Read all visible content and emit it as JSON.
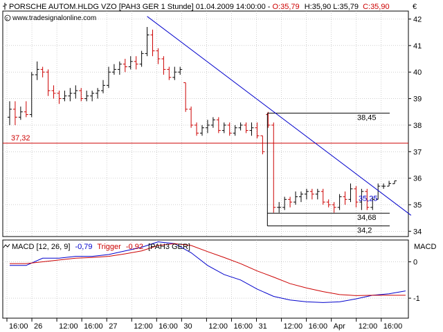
{
  "header": {
    "icon": "bar-chart-icon",
    "instrument": "PORSCHE AUTOM.HLDG VZO [PAH3 GER  1 Stunde] 01.04.2009 14:00:00 -",
    "ohlc_o": "O:35,79",
    "ohlc_hlc": "H:35,90 L:35,79",
    "ohlc_c": "C:35,90",
    "currency": "€",
    "copyright_icon": "copyright-icon",
    "source": "www.tradesignalonline.com"
  },
  "colors": {
    "up": "#000000",
    "down": "#cc0000",
    "trendline": "#0000cc",
    "hline": "#cc0000",
    "macd": "#0000cc",
    "trigger": "#cc0000",
    "grid": "#b0b0b0"
  },
  "chart_data": [
    {
      "type": "ohlc",
      "title": "PORSCHE AUTOM.HLDG VZO [PAH3 GER  1 Stunde]",
      "ylabel": "€",
      "ylim": [
        33.8,
        42.3
      ],
      "y_ticks": [
        34,
        35,
        36,
        37,
        38,
        39,
        40,
        41,
        42
      ],
      "y_tick_labels": [
        "34",
        "35",
        "36",
        "37",
        "38",
        "39",
        "40",
        "41",
        "42"
      ],
      "grid": true,
      "x_tick_labels": [
        "16:00",
        "26",
        "12:00",
        "16:00",
        "27",
        "12:00",
        "16:00",
        "30",
        "12:00",
        "16:00",
        "31",
        "12:00",
        "16:00",
        "Apr",
        "12:00",
        "16:00"
      ],
      "bars": [
        {
          "o": 38.3,
          "h": 38.9,
          "l": 38.0,
          "c": 38.6
        },
        {
          "o": 38.6,
          "h": 38.9,
          "l": 38.0,
          "c": 38.3
        },
        {
          "o": 38.3,
          "h": 38.7,
          "l": 38.2,
          "c": 38.5
        },
        {
          "o": 38.5,
          "h": 38.9,
          "l": 38.3,
          "c": 38.4
        },
        {
          "o": 38.4,
          "h": 40.0,
          "l": 38.3,
          "c": 39.9
        },
        {
          "o": 39.9,
          "h": 40.4,
          "l": 39.7,
          "c": 40.1
        },
        {
          "o": 40.1,
          "h": 40.2,
          "l": 39.8,
          "c": 40.0
        },
        {
          "o": 40.0,
          "h": 40.1,
          "l": 39.1,
          "c": 39.3
        },
        {
          "o": 39.3,
          "h": 39.5,
          "l": 39.0,
          "c": 39.2
        },
        {
          "o": 39.2,
          "h": 39.3,
          "l": 38.8,
          "c": 39.0
        },
        {
          "o": 39.0,
          "h": 39.3,
          "l": 38.9,
          "c": 39.1
        },
        {
          "o": 39.1,
          "h": 39.4,
          "l": 38.9,
          "c": 39.2
        },
        {
          "o": 39.2,
          "h": 39.5,
          "l": 39.0,
          "c": 39.3
        },
        {
          "o": 39.3,
          "h": 39.4,
          "l": 38.9,
          "c": 39.0
        },
        {
          "o": 39.0,
          "h": 39.3,
          "l": 38.9,
          "c": 39.1
        },
        {
          "o": 39.1,
          "h": 39.3,
          "l": 38.9,
          "c": 39.2
        },
        {
          "o": 39.2,
          "h": 39.4,
          "l": 39.0,
          "c": 39.3
        },
        {
          "o": 39.3,
          "h": 39.7,
          "l": 39.2,
          "c": 39.5
        },
        {
          "o": 39.5,
          "h": 40.2,
          "l": 39.4,
          "c": 40.0
        },
        {
          "o": 40.0,
          "h": 40.3,
          "l": 39.9,
          "c": 40.1
        },
        {
          "o": 40.1,
          "h": 40.4,
          "l": 39.9,
          "c": 40.3
        },
        {
          "o": 40.3,
          "h": 40.5,
          "l": 40.0,
          "c": 40.2
        },
        {
          "o": 40.2,
          "h": 40.6,
          "l": 40.1,
          "c": 40.4
        },
        {
          "o": 40.4,
          "h": 40.6,
          "l": 40.1,
          "c": 40.3
        },
        {
          "o": 40.3,
          "h": 40.8,
          "l": 40.2,
          "c": 40.7
        },
        {
          "o": 40.7,
          "h": 41.7,
          "l": 40.6,
          "c": 41.4
        },
        {
          "o": 41.4,
          "h": 41.6,
          "l": 40.6,
          "c": 40.8
        },
        {
          "o": 40.8,
          "h": 40.9,
          "l": 40.3,
          "c": 40.5
        },
        {
          "o": 40.5,
          "h": 40.6,
          "l": 39.9,
          "c": 40.1
        },
        {
          "o": 40.1,
          "h": 40.2,
          "l": 39.7,
          "c": 39.8
        },
        {
          "o": 39.8,
          "h": 40.2,
          "l": 39.7,
          "c": 40.0
        },
        {
          "o": 40.0,
          "h": 40.2,
          "l": 39.9,
          "c": 40.1
        },
        {
          "o": 39.6,
          "h": 39.6,
          "l": 38.5,
          "c": 38.6
        },
        {
          "o": 38.6,
          "h": 38.7,
          "l": 37.9,
          "c": 38.0
        },
        {
          "o": 38.0,
          "h": 38.1,
          "l": 37.6,
          "c": 37.7
        },
        {
          "o": 37.7,
          "h": 38.0,
          "l": 37.6,
          "c": 37.9
        },
        {
          "o": 37.9,
          "h": 38.2,
          "l": 37.7,
          "c": 38.0
        },
        {
          "o": 38.0,
          "h": 38.3,
          "l": 37.9,
          "c": 38.2
        },
        {
          "o": 38.2,
          "h": 38.3,
          "l": 37.7,
          "c": 37.8
        },
        {
          "o": 37.8,
          "h": 38.1,
          "l": 37.7,
          "c": 38.0
        },
        {
          "o": 38.0,
          "h": 38.1,
          "l": 37.6,
          "c": 37.7
        },
        {
          "o": 37.7,
          "h": 38.0,
          "l": 37.6,
          "c": 37.9
        },
        {
          "o": 37.9,
          "h": 38.1,
          "l": 37.8,
          "c": 38.0
        },
        {
          "o": 38.0,
          "h": 38.1,
          "l": 37.7,
          "c": 37.8
        },
        {
          "o": 37.8,
          "h": 38.1,
          "l": 37.6,
          "c": 37.9
        },
        {
          "o": 37.9,
          "h": 38.1,
          "l": 37.5,
          "c": 37.6
        },
        {
          "o": 37.6,
          "h": 37.6,
          "l": 36.9,
          "c": 37.0
        },
        {
          "o": 38.4,
          "h": 38.5,
          "l": 37.9,
          "c": 38.0
        },
        {
          "o": 38.0,
          "h": 38.1,
          "l": 34.7,
          "c": 34.9
        },
        {
          "o": 34.9,
          "h": 35.1,
          "l": 34.7,
          "c": 34.9
        },
        {
          "o": 34.9,
          "h": 35.3,
          "l": 34.8,
          "c": 35.2
        },
        {
          "o": 35.2,
          "h": 35.3,
          "l": 34.9,
          "c": 35.1
        },
        {
          "o": 35.1,
          "h": 35.5,
          "l": 35.0,
          "c": 35.3
        },
        {
          "o": 35.3,
          "h": 35.5,
          "l": 35.1,
          "c": 35.4
        },
        {
          "o": 35.4,
          "h": 35.6,
          "l": 35.2,
          "c": 35.5
        },
        {
          "o": 35.5,
          "h": 35.6,
          "l": 35.2,
          "c": 35.4
        },
        {
          "o": 35.4,
          "h": 35.6,
          "l": 35.2,
          "c": 35.5
        },
        {
          "o": 35.5,
          "h": 35.6,
          "l": 35.0,
          "c": 35.1
        },
        {
          "o": 35.1,
          "h": 35.2,
          "l": 34.9,
          "c": 35.0
        },
        {
          "o": 35.0,
          "h": 35.1,
          "l": 34.7,
          "c": 34.9
        },
        {
          "o": 34.9,
          "h": 35.4,
          "l": 34.8,
          "c": 35.3
        },
        {
          "o": 35.3,
          "h": 35.5,
          "l": 35.0,
          "c": 35.2
        },
        {
          "o": 35.2,
          "h": 35.8,
          "l": 35.1,
          "c": 35.6
        },
        {
          "o": 35.6,
          "h": 35.7,
          "l": 34.9,
          "c": 35.1
        },
        {
          "o": 35.1,
          "h": 35.6,
          "l": 34.8,
          "c": 35.5
        },
        {
          "o": 35.5,
          "h": 35.6,
          "l": 34.8,
          "c": 34.9
        },
        {
          "o": 34.9,
          "h": 35.3,
          "l": 34.8,
          "c": 35.2
        },
        {
          "o": 35.2,
          "h": 35.8,
          "l": 35.2,
          "c": 35.7
        },
        {
          "o": 35.7,
          "h": 35.8,
          "l": 35.6,
          "c": 35.7
        },
        {
          "o": 35.7,
          "h": 35.9,
          "l": 35.7,
          "c": 35.8
        },
        {
          "o": 35.79,
          "h": 35.9,
          "l": 35.79,
          "c": 35.9
        }
      ],
      "trendline": {
        "from": {
          "bar": 25,
          "price": 42.1
        },
        "to": {
          "bar": 73,
          "price": 34.6
        }
      },
      "horizontal_line": {
        "price": 37.32,
        "label": "37,32"
      },
      "level_lines": [
        {
          "price": 38.45,
          "label": "38,45",
          "from_bar": 47
        },
        {
          "price": 34.68,
          "label": "34,68",
          "from_bar": 47
        },
        {
          "price": 34.2,
          "label": "34,2",
          "from_bar": 47
        }
      ],
      "trendline_label": {
        "text": "35,25",
        "price": 35.25
      }
    },
    {
      "type": "line",
      "title": "MACD [12, 26, 9]",
      "legend_macd_value": "-0,79",
      "legend_trigger": "Trigger",
      "legend_trigger_value": "-0,92",
      "legend_symbol": "[PAH3 GER]",
      "ylabel": "MACD",
      "ylim": [
        -1.55,
        0.6
      ],
      "y_ticks": [
        0,
        -1
      ],
      "y_tick_labels": [
        "0",
        "-1"
      ],
      "grid": true,
      "x": [
        0,
        3,
        6,
        9,
        12,
        15,
        18,
        21,
        24,
        27,
        30,
        33,
        36,
        39,
        42,
        45,
        48,
        51,
        54,
        57,
        60,
        63,
        66,
        69,
        72
      ],
      "series": [
        {
          "key": "macd",
          "values": [
            -0.1,
            -0.1,
            0.1,
            0.1,
            0.15,
            0.15,
            0.2,
            0.3,
            0.4,
            0.55,
            0.5,
            0.25,
            -0.1,
            -0.35,
            -0.5,
            -0.75,
            -0.95,
            -1.05,
            -1.1,
            -1.12,
            -1.1,
            -1.02,
            -0.92,
            -0.88,
            -0.8
          ]
        },
        {
          "key": "trigger",
          "values": [
            -0.05,
            -0.05,
            0.0,
            0.05,
            0.1,
            0.12,
            0.15,
            0.22,
            0.3,
            0.45,
            0.5,
            0.45,
            0.28,
            0.12,
            -0.05,
            -0.25,
            -0.42,
            -0.6,
            -0.72,
            -0.82,
            -0.9,
            -0.93,
            -0.92,
            -0.92,
            -0.92
          ]
        }
      ]
    }
  ]
}
